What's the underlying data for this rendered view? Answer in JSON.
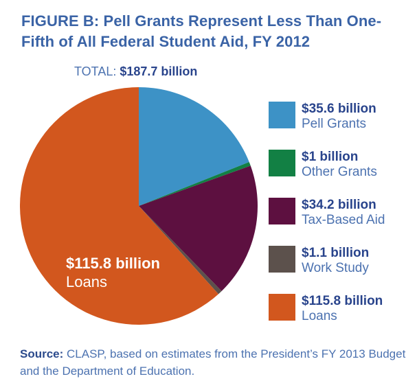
{
  "figure": {
    "title_lines": [
      "FIGURE B: Pell Grants Represent Less Than One-",
      "Fifth of All Federal Student Aid, FY 2012"
    ],
    "total": {
      "prefix": "TOTAL: ",
      "value": "$187.7 billion"
    },
    "source": {
      "prefix": "Source:",
      "text": " CLASP, based on estimates from the President’s FY 2013 Budget and the Department of Education."
    }
  },
  "chart_data": {
    "type": "pie",
    "title": "Pell Grants Represent Less Than One-Fifth of All Federal Student Aid, FY 2012",
    "total_label": "TOTAL: $187.7 billion",
    "total_value": 187.7,
    "units": "billions USD",
    "start_angle": "12 o'clock",
    "direction": "clockwise",
    "legend_position": "right",
    "slices": [
      {
        "label": "Pell Grants",
        "amount_label": "$35.6 billion",
        "value": 35.6,
        "color": "#3D92C6"
      },
      {
        "label": "Other Grants",
        "amount_label": "$1 billion",
        "value": 1,
        "color": "#128044"
      },
      {
        "label": "Tax-Based Aid",
        "amount_label": "$34.2 billion",
        "value": 34.2,
        "color": "#5D1040"
      },
      {
        "label": "Work Study",
        "amount_label": "$1.1 billion",
        "value": 1.1,
        "color": "#5C514C"
      },
      {
        "label": "Loans",
        "amount_label": "$115.8 billion",
        "value": 115.8,
        "color": "#D2571E"
      }
    ],
    "pie_inner_label": {
      "amount": "$115.8 billion",
      "label": "Loans",
      "color": "#FFFFFF"
    }
  }
}
